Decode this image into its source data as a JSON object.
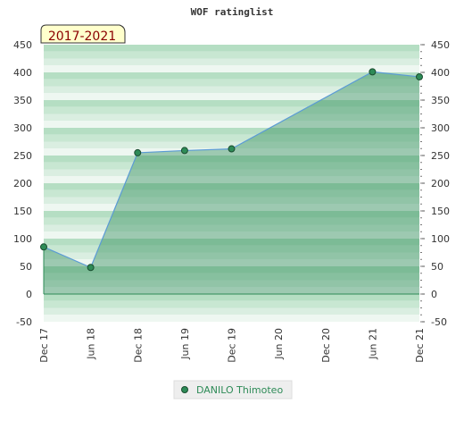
{
  "chart_data": {
    "type": "area",
    "title": "WOF ratinglist",
    "badge": "2017-2021",
    "categories": [
      "Dec 17",
      "Jun 18",
      "Dec 18",
      "Jun 19",
      "Dec 19",
      "Jun 20",
      "Dec 20",
      "Jun 21",
      "Dec 21"
    ],
    "y_ticks": [
      450,
      400,
      350,
      300,
      250,
      200,
      150,
      100,
      50,
      0,
      -50
    ],
    "ylim": [
      -50,
      450
    ],
    "series": [
      {
        "name": "DANILO Thimoteo",
        "color": "#2e8b57",
        "line_color": "#5b9bd5",
        "points": [
          {
            "x": "Dec 17",
            "y": 85
          },
          {
            "x": "Jun 18",
            "y": 48
          },
          {
            "x": "Dec 18",
            "y": 255
          },
          {
            "x": "Jun 19",
            "y": 259
          },
          {
            "x": "Dec 19",
            "y": 262
          },
          {
            "x": "Jun 21",
            "y": 401
          },
          {
            "x": "Dec 21",
            "y": 392
          }
        ]
      }
    ],
    "grid": true,
    "legend_position": "bottom-center"
  }
}
